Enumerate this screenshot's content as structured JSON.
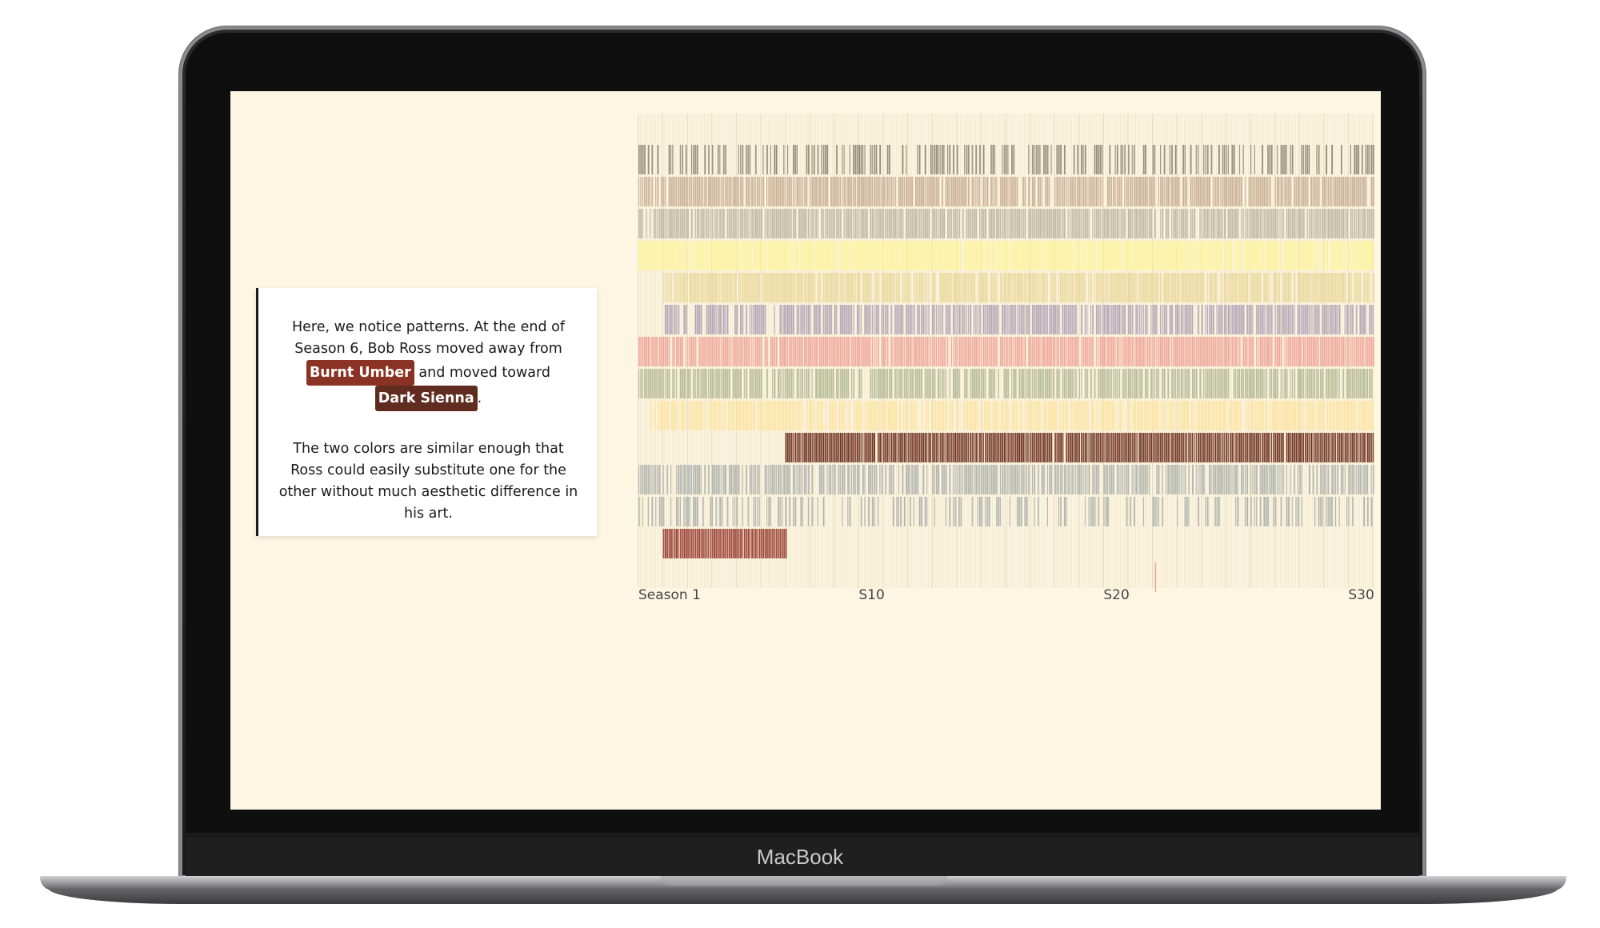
{
  "device": {
    "brand_label": "MacBook"
  },
  "annotation": {
    "para1_before": "Here, we notice patterns. At the end of Season 6, Bob Ross moved away from",
    "tag1": "Burnt Umber",
    "para1_middle": "and moved toward",
    "tag2": "Dark Sienna",
    "para1_after": ".",
    "para2": "The two colors are similar enough that Ross could easily substitute one for the other without much aesthetic difference in his art.",
    "tag1_color": "#8a3324",
    "tag2_color": "#5f2c1f"
  },
  "chart_data": {
    "type": "heatmap",
    "x_axis": {
      "unit": "season",
      "range": [
        1,
        31
      ],
      "tick_labels": [
        {
          "season": 1,
          "label": "Season 1"
        },
        {
          "season": 10,
          "label": "S10"
        },
        {
          "season": 20,
          "label": "S20"
        },
        {
          "season": 30,
          "label": "S30"
        }
      ]
    },
    "rows": [
      {
        "color": "#8f8b78",
        "start_season": 1.0,
        "end_season": 31.0,
        "density": 0.55,
        "gap": 0.04
      },
      {
        "color": "#c8ad96",
        "start_season": 1.0,
        "end_season": 31.0,
        "density": 0.92,
        "gap": 0.03
      },
      {
        "color": "#bdb5a3",
        "start_season": 1.0,
        "end_season": 31.0,
        "density": 0.9,
        "gap": 0.03
      },
      {
        "color": "#fff59a",
        "start_season": 1.0,
        "end_season": 31.0,
        "density": 0.97,
        "gap": 0.02
      },
      {
        "color": "#ead899",
        "start_season": 2.0,
        "end_season": 31.0,
        "density": 0.92,
        "gap": 0.03
      },
      {
        "color": "#b0a3b8",
        "start_season": 2.0,
        "end_season": 31.0,
        "density": 0.8,
        "gap": 0.04
      },
      {
        "color": "#f0a49a",
        "start_season": 1.0,
        "end_season": 31.0,
        "density": 0.95,
        "gap": 0.02
      },
      {
        "color": "#b1b996",
        "start_season": 1.0,
        "end_season": 31.0,
        "density": 0.85,
        "gap": 0.03
      },
      {
        "color": "#fde29c",
        "start_season": 1.5,
        "end_season": 31.0,
        "density": 0.85,
        "gap": 0.03
      },
      {
        "color": "#6b2c1d",
        "start_season": 7.0,
        "end_season": 31.0,
        "density": 0.97,
        "gap": 0.02
      },
      {
        "color": "#adb3af",
        "start_season": 1.0,
        "end_season": 31.0,
        "density": 0.75,
        "gap": 0.04
      },
      {
        "color": "#adb3af",
        "start_season": 1.0,
        "end_season": 31.0,
        "density": 0.45,
        "gap": 0.05
      },
      {
        "color": "#94332a",
        "start_season": 2.0,
        "end_season": 7.0,
        "density": 0.97,
        "gap": 0.02
      }
    ],
    "isolated_marks": [
      {
        "row_after": 12,
        "season": 22.1,
        "color": "#f0a49a"
      }
    ],
    "grid": true,
    "legend": "none"
  }
}
